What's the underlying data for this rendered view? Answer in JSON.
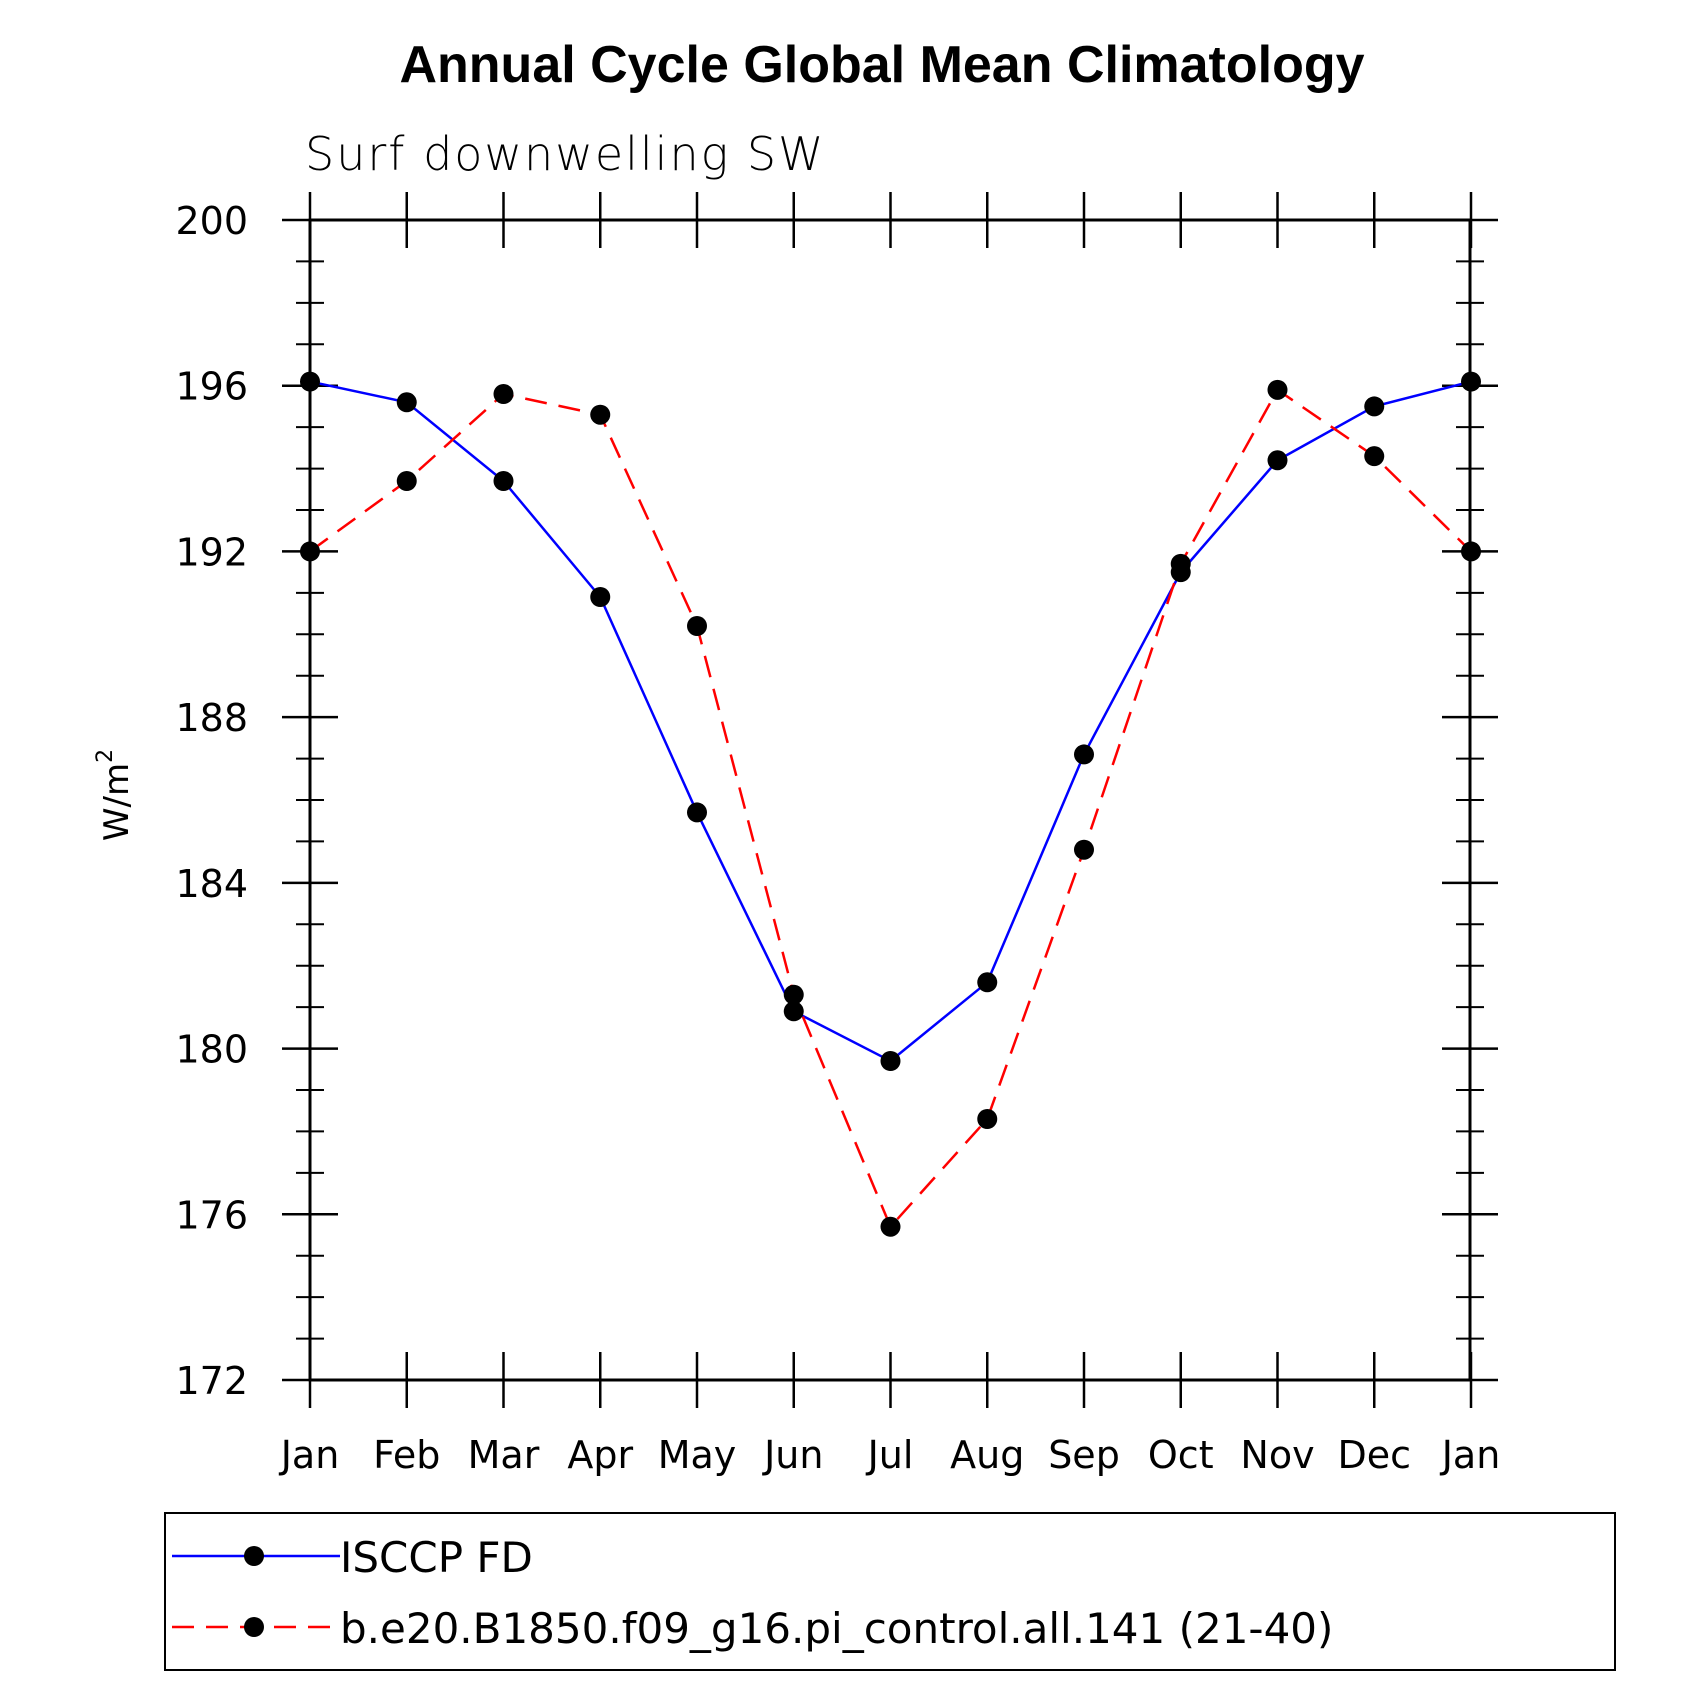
{
  "chart_data": {
    "type": "line",
    "title": "Annual Cycle Global Mean Climatology",
    "subtitle": "Surf downwelling SW",
    "ylabel_main": "W/m",
    "ylabel_sup": "2",
    "xlabel": "",
    "categories": [
      "Jan",
      "Feb",
      "Mar",
      "Apr",
      "May",
      "Jun",
      "Jul",
      "Aug",
      "Sep",
      "Oct",
      "Nov",
      "Dec",
      "Jan"
    ],
    "ylim": [
      172,
      200
    ],
    "yticks": [
      "172",
      "176",
      "180",
      "184",
      "188",
      "192",
      "196",
      "200"
    ],
    "grid": false,
    "legend_position": "bottom",
    "series": [
      {
        "name": "ISCCP FD",
        "color": "#0000ff",
        "dash": "solid",
        "values": [
          196.1,
          195.6,
          193.7,
          190.9,
          185.7,
          180.9,
          179.7,
          181.6,
          187.1,
          191.5,
          194.2,
          195.5,
          196.1
        ]
      },
      {
        "name": "b.e20.B1850.f09_g16.pi_control.all.141 (21-40)",
        "color": "#ff0000",
        "dash": "dashed",
        "values": [
          192.0,
          193.7,
          195.8,
          195.3,
          190.2,
          181.3,
          175.7,
          178.3,
          184.8,
          191.7,
          195.9,
          194.3,
          192.0
        ]
      }
    ]
  }
}
